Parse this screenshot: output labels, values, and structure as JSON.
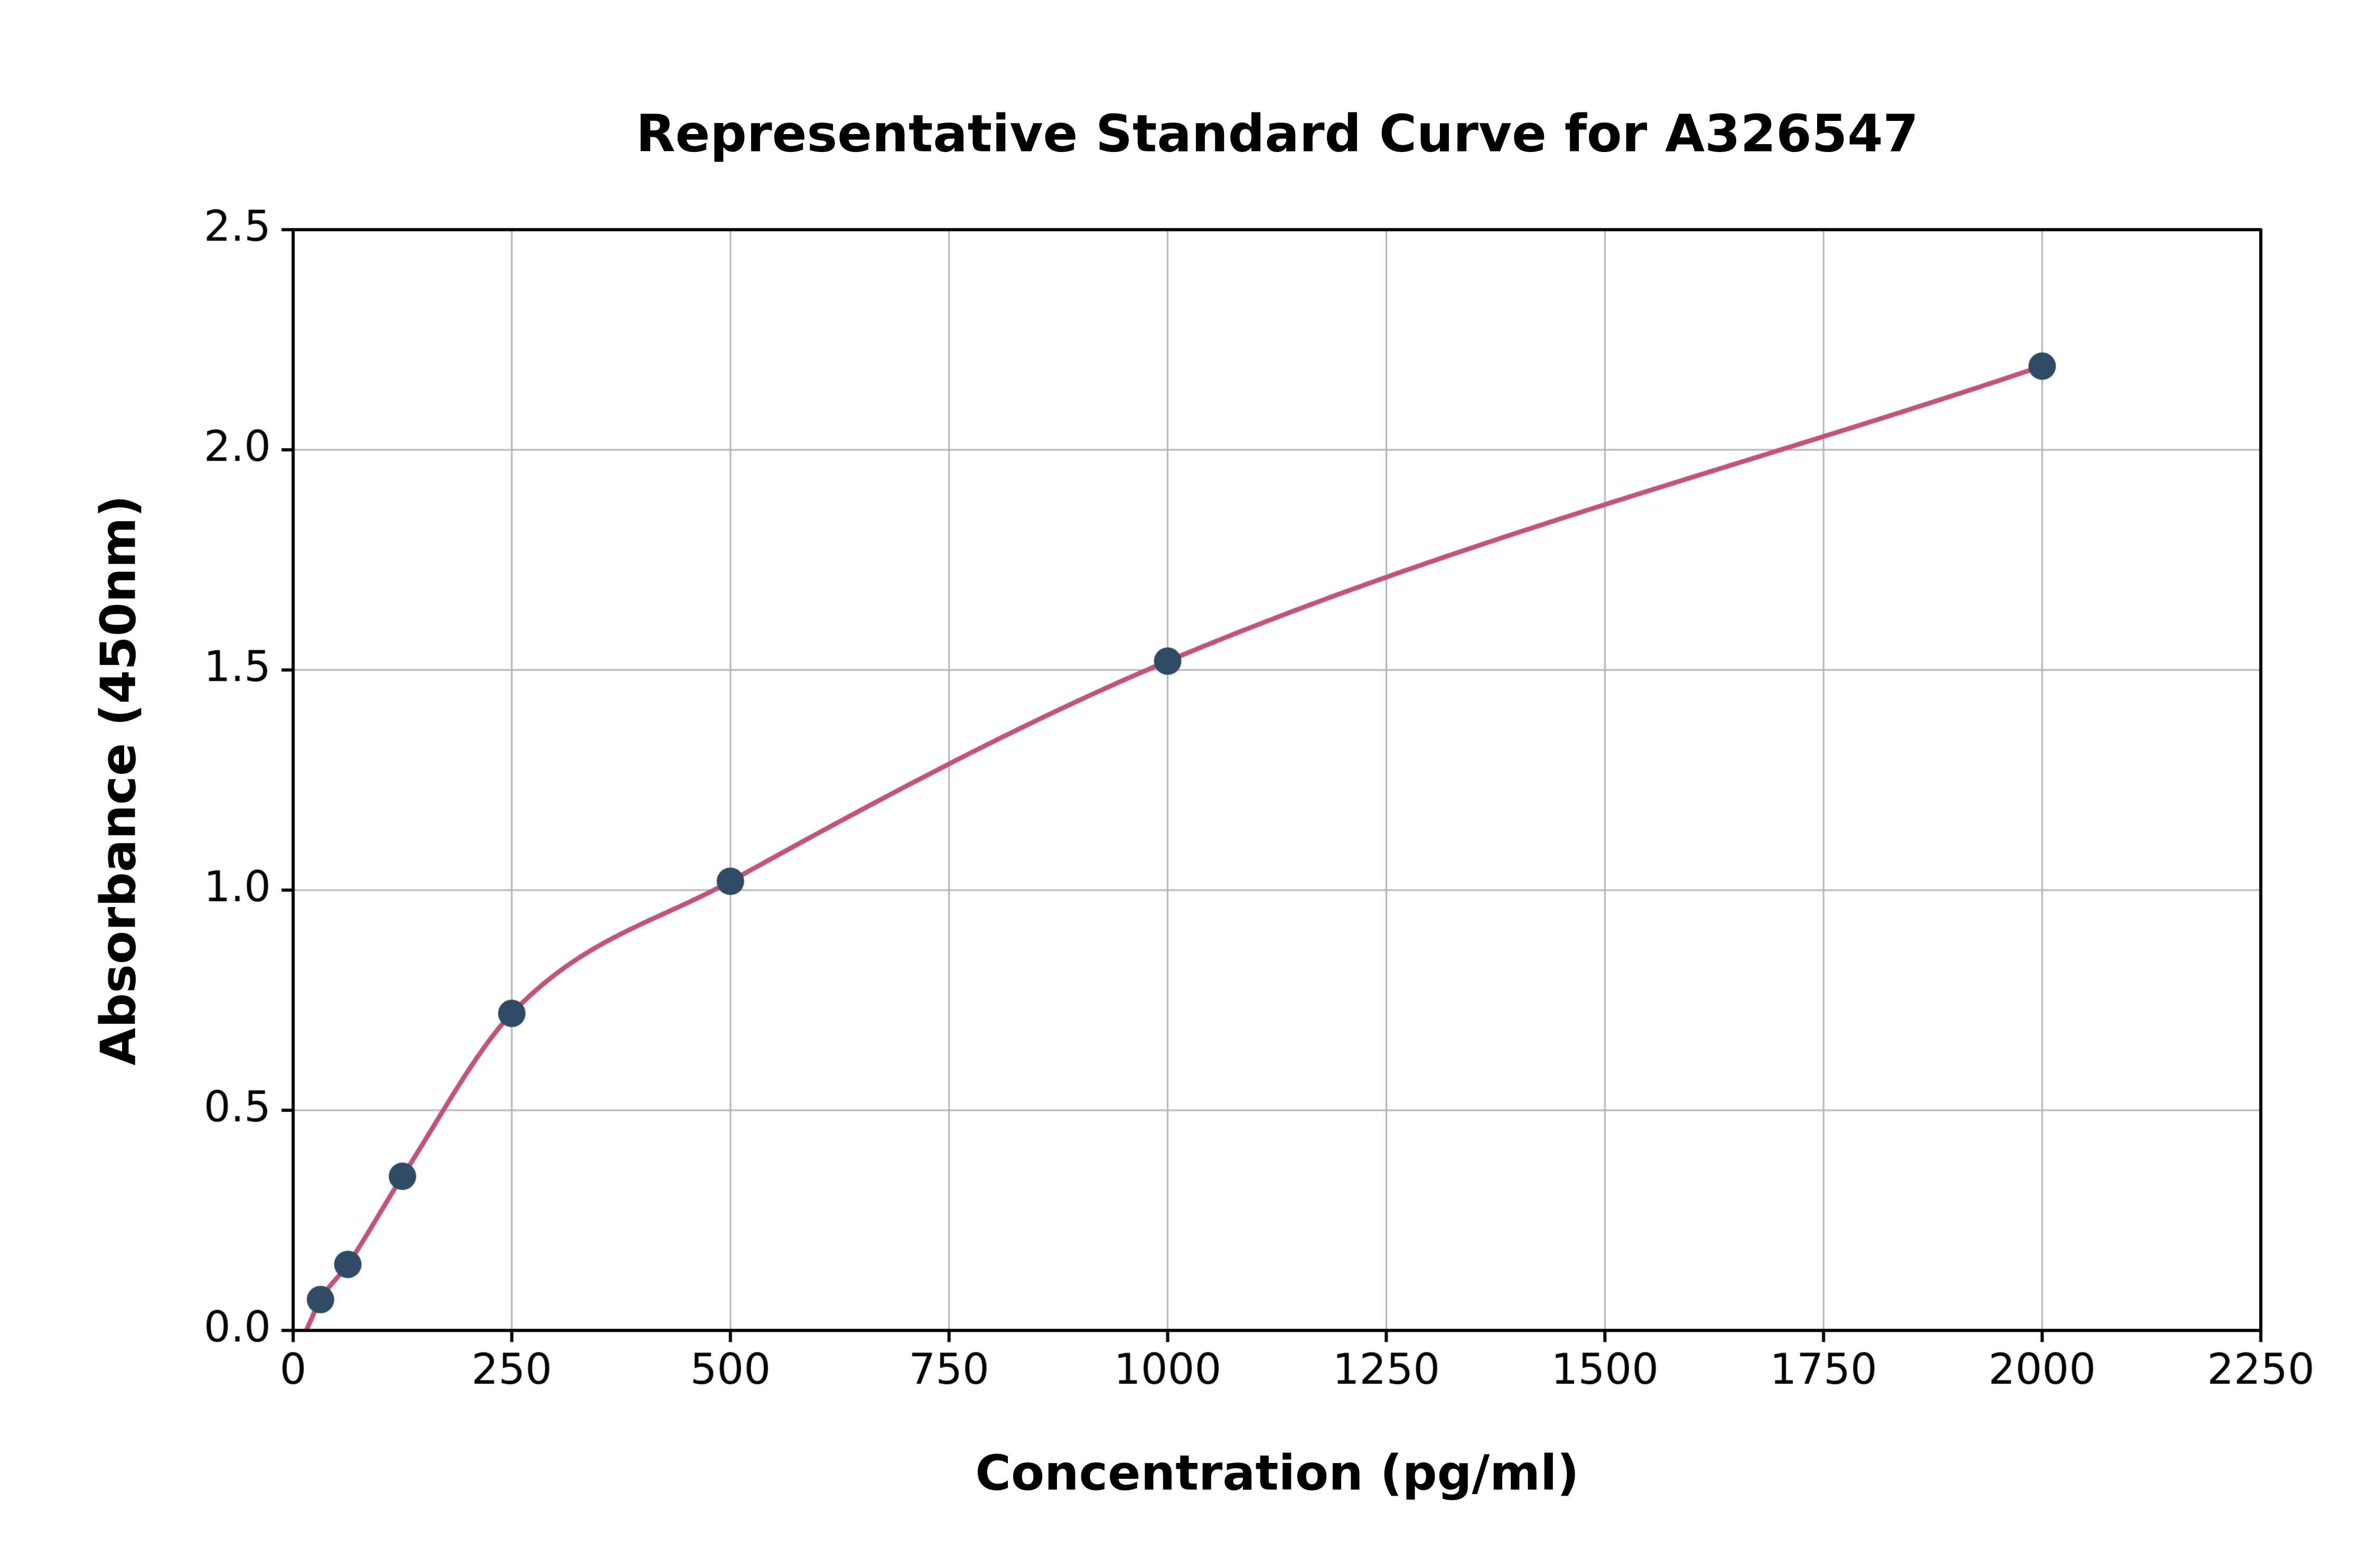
{
  "chart_data": {
    "type": "scatter",
    "title": "Representative Standard Curve for A326547",
    "xlabel": "Concentration (pg/ml)",
    "ylabel": "Absorbance (450nm)",
    "xlim": [
      0,
      2250
    ],
    "ylim": [
      0,
      2.5
    ],
    "x_ticks": [
      0,
      250,
      500,
      750,
      1000,
      1250,
      1500,
      1750,
      2000,
      2250
    ],
    "y_ticks": [
      0.0,
      0.5,
      1.0,
      1.5,
      2.0,
      2.5
    ],
    "grid": true,
    "legend": "none",
    "curve_start": [
      15,
      0.0
    ],
    "series": [
      {
        "name": "standard-points",
        "type": "scatter",
        "color": "#2f4b66",
        "points": [
          [
            31.25,
            0.07
          ],
          [
            62.5,
            0.15
          ],
          [
            125,
            0.35
          ],
          [
            250,
            0.72
          ],
          [
            500,
            1.02
          ],
          [
            1000,
            1.52
          ],
          [
            2000,
            2.19
          ]
        ]
      },
      {
        "name": "fitted-curve",
        "type": "line",
        "color": "#c4537b",
        "fit": "smooth curve through standard points"
      }
    ]
  },
  "colors": {
    "background": "#ffffff",
    "grid": "#b3b3b3",
    "axis": "#000000",
    "tick_label": "#000000"
  }
}
